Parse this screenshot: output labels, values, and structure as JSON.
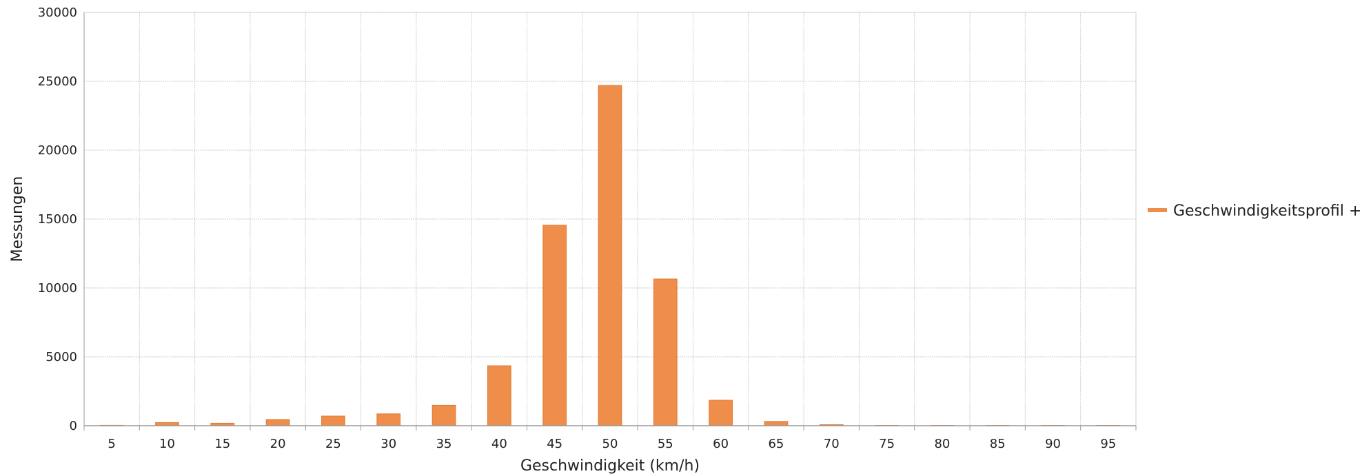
{
  "chart_data": {
    "type": "bar",
    "xlabel": "Geschwindigkeit (km/h)",
    "ylabel": "Messungen",
    "categories": [
      "5",
      "10",
      "15",
      "20",
      "25",
      "30",
      "35",
      "40",
      "45",
      "50",
      "55",
      "60",
      "65",
      "70",
      "75",
      "80",
      "85",
      "90",
      "95"
    ],
    "series": [
      {
        "name": "Geschwindigkeitsprofil +",
        "values": [
          30,
          230,
          180,
          450,
          700,
          860,
          1480,
          4350,
          14550,
          24700,
          10650,
          1850,
          310,
          80,
          20,
          10,
          5,
          5,
          5
        ],
        "color": "#ef8d4b"
      }
    ],
    "ylim": [
      0,
      30000
    ],
    "yticks": [
      "0",
      "5000",
      "10000",
      "15000",
      "20000",
      "25000",
      "30000"
    ],
    "grid": true,
    "legend_position": "right"
  }
}
